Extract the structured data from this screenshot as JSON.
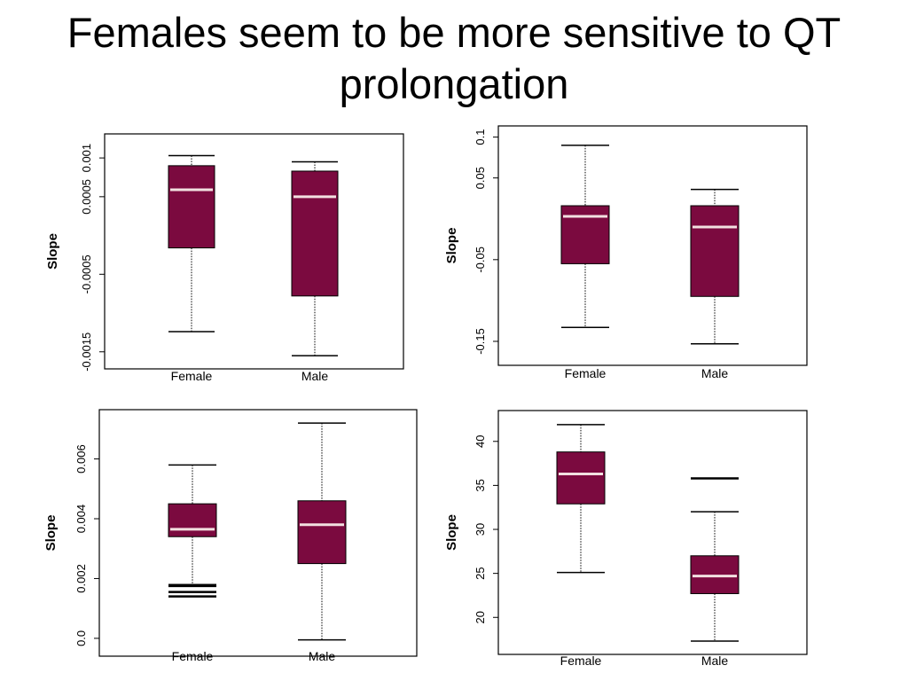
{
  "title": {
    "line1": "Females seem to be more sensitive to QT",
    "line2": "prolongation"
  },
  "colors": {
    "box_fill": "#7b0a3f",
    "median": "#f2e0e0",
    "frame": "#000000"
  },
  "chart_data": [
    {
      "type": "box",
      "ylabel": "Slope",
      "ylim": [
        -0.00172,
        0.00123
      ],
      "ticks": [
        0.001,
        0.0005,
        -0.0005,
        -0.0015
      ],
      "tick_labels": [
        "0.001",
        "0.0005",
        "-0.0005",
        "-0.0015"
      ],
      "categories": [
        "Female",
        "Male"
      ],
      "boxes": [
        {
          "whisker_low": -0.00124,
          "q1": -0.00016,
          "median": 0.00059,
          "q3": 0.0009,
          "whisker_high": 0.00103,
          "outliers": []
        },
        {
          "whisker_low": -0.00155,
          "q1": -0.00078,
          "median": 0.0005,
          "q3": 0.00083,
          "whisker_high": 0.00095,
          "outliers": []
        }
      ]
    },
    {
      "type": "box",
      "ylabel": "Slope",
      "ylim": [
        -0.175,
        0.105
      ],
      "ticks": [
        0.1,
        0.05,
        -0.05,
        -0.15
      ],
      "tick_labels": [
        "0.1",
        "0.05",
        "-0.05",
        "-0.15"
      ],
      "categories": [
        "Female",
        "Male"
      ],
      "boxes": [
        {
          "whisker_low": -0.133,
          "q1": -0.055,
          "median": 0.003,
          "q3": 0.016,
          "whisker_high": 0.09,
          "outliers": []
        },
        {
          "whisker_low": -0.153,
          "q1": -0.095,
          "median": -0.01,
          "q3": 0.016,
          "whisker_high": 0.036,
          "outliers": []
        }
      ]
    },
    {
      "type": "box",
      "ylabel": "Slope",
      "ylim": [
        -0.0003,
        0.0075
      ],
      "ticks": [
        0.006,
        0.004,
        0.002,
        0.0
      ],
      "tick_labels": [
        "0.006",
        "0.004",
        "0.002",
        "0.0"
      ],
      "categories": [
        "Female",
        "Male"
      ],
      "boxes": [
        {
          "whisker_low": 0.0018,
          "q1": 0.0034,
          "median": 0.00365,
          "q3": 0.0045,
          "whisker_high": 0.0058,
          "outliers": [
            0.00175,
            0.00155,
            0.0014
          ]
        },
        {
          "whisker_low": -5e-05,
          "q1": 0.0025,
          "median": 0.0038,
          "q3": 0.0046,
          "whisker_high": 0.0072,
          "outliers": []
        }
      ]
    },
    {
      "type": "box",
      "ylabel": "Slope",
      "ylim": [
        16.5,
        43.0
      ],
      "ticks": [
        40,
        35,
        30,
        25,
        20
      ],
      "tick_labels": [
        "40",
        "35",
        "30",
        "25",
        "20"
      ],
      "categories": [
        "Female",
        "Male"
      ],
      "boxes": [
        {
          "whisker_low": 25.1,
          "q1": 32.9,
          "median": 36.3,
          "q3": 38.8,
          "whisker_high": 41.9,
          "outliers": []
        },
        {
          "whisker_low": 17.3,
          "q1": 22.7,
          "median": 24.7,
          "q3": 27.0,
          "whisker_high": 32.0,
          "outliers": [
            35.8
          ]
        }
      ]
    }
  ]
}
